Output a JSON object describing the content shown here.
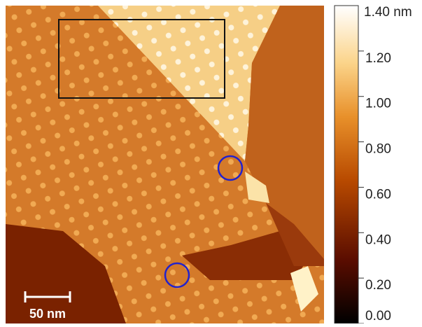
{
  "scale_bar": {
    "label": "50 nm"
  },
  "colorbar": {
    "lim": [
      0,
      1.4
    ],
    "unit_label": "1.40 nm",
    "ticks": [
      {
        "value": 1.2,
        "label": "1.20"
      },
      {
        "value": 1.0,
        "label": "1.00"
      },
      {
        "value": 0.8,
        "label": "0.80"
      },
      {
        "value": 0.6,
        "label": "0.60"
      },
      {
        "value": 0.4,
        "label": "0.40"
      },
      {
        "value": 0.2,
        "label": "0.20"
      },
      {
        "value": 0,
        "label": "0.00"
      }
    ]
  }
}
